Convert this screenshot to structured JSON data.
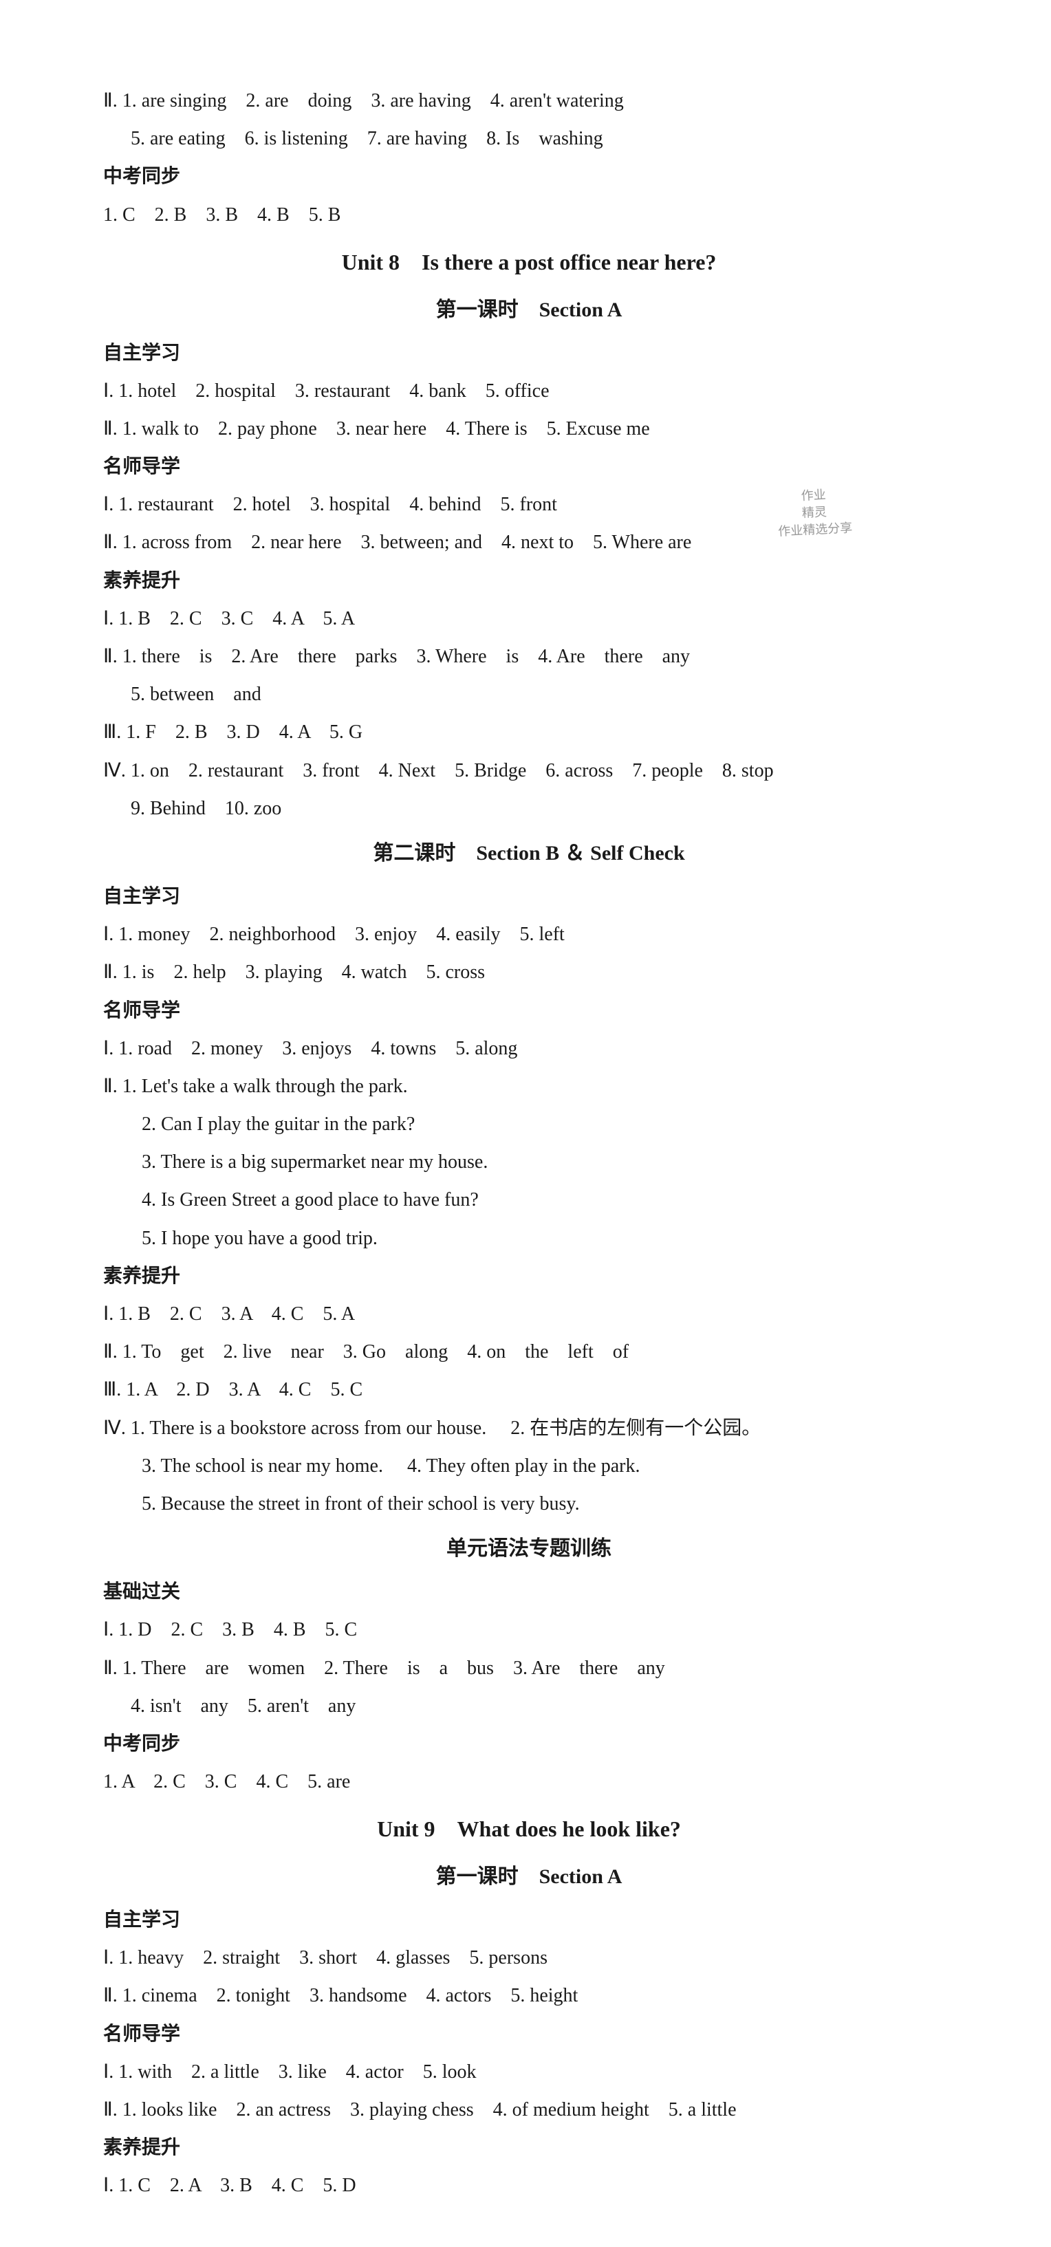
{
  "lines": {
    "l1": "Ⅱ. 1. are singing　2. are　doing　3. are having　4. aren't watering",
    "l2": "5. are eating　6. is listening　7. are having　8. Is　washing",
    "l3": "中考同步",
    "l4": "1. C　2. B　3. B　4. B　5. B",
    "l5": "Unit 8　Is there a post office near here?",
    "l6": "第一课时　Section A",
    "l7": "自主学习",
    "l8": "Ⅰ. 1. hotel　2. hospital　3. restaurant　4. bank　5. office",
    "l9": "Ⅱ. 1. walk to　2. pay phone　3. near here　4. There is　5. Excuse me",
    "l10": "名师导学",
    "l11": "Ⅰ. 1. restaurant　2. hotel　3. hospital　4. behind　5. front",
    "l12": "Ⅱ. 1. across from　2. near here　3. between; and　4. next to　5. Where are",
    "l13": "素养提升",
    "l14": "Ⅰ. 1. B　2. C　3. C　4. A　5. A",
    "l15": "Ⅱ. 1. there　is　2. Are　there　parks　3. Where　is　4. Are　there　any",
    "l16": "5. between　and",
    "l17": "Ⅲ. 1. F　2. B　3. D　4. A　5. G",
    "l18": "Ⅳ. 1. on　2. restaurant　3. front　4. Next　5. Bridge　6. across　7. people　8. stop",
    "l19": "9. Behind　10. zoo",
    "l20": "第二课时　Section B ＆ Self Check",
    "l21": "自主学习",
    "l22": "Ⅰ. 1. money　2. neighborhood　3. enjoy　4. easily　5. left",
    "l23": "Ⅱ. 1. is　2. help　3. playing　4. watch　5. cross",
    "l24": "名师导学",
    "l25": "Ⅰ. 1. road　2. money　3. enjoys　4. towns　5. along",
    "l26": "Ⅱ. 1. Let's take a walk through the park.",
    "l27": "2. Can I play the guitar in the park?",
    "l28": "3. There is a big supermarket near my house.",
    "l29": "4. Is Green Street a good place to have fun?",
    "l30": "5. I hope you have a good trip.",
    "l31": "素养提升",
    "l32": "Ⅰ. 1. B　2. C　3. A　4. C　5. A",
    "l33": "Ⅱ. 1. To　get　2. live　near　3. Go　along　4. on　the　left　of",
    "l34": "Ⅲ. 1. A　2. D　3. A　4. C　5. C",
    "l35": "Ⅳ. 1. There is a bookstore across from our house.　 2. 在书店的左侧有一个公园。",
    "l36": "3. The school is near my home.　 4. They often play in the park.",
    "l37": "5. Because the street in front of their school is very busy.",
    "l38": "单元语法专题训练",
    "l39": "基础过关",
    "l40": "Ⅰ. 1. D　2. C　3. B　4. B　5. C",
    "l41": "Ⅱ. 1. There　are　women　2. There　is　a　bus　3. Are　there　any",
    "l42": "4. isn't　any　5. aren't　any",
    "l43": "中考同步",
    "l44": "1. A　2. C　3. C　4. C　5. are",
    "l45": "Unit 9　What does he look like?",
    "l46": "第一课时　Section A",
    "l47": "自主学习",
    "l48": "Ⅰ. 1. heavy　2. straight　3. short　4. glasses　5. persons",
    "l49": "Ⅱ. 1. cinema　2. tonight　3. handsome　4. actors　5. height",
    "l50": "名师导学",
    "l51": "Ⅰ. 1. with　2. a little　3. like　4. actor　5. look",
    "l52": "Ⅱ. 1. looks like　2. an actress　3. playing chess　4. of medium height　5. a little",
    "l53": "素养提升",
    "l54": "Ⅰ. 1. C　2. A　3. B　4. C　5. D"
  },
  "watermark": {
    "text1": "作业",
    "text2": "精灵",
    "text3": "作业精选分享"
  }
}
